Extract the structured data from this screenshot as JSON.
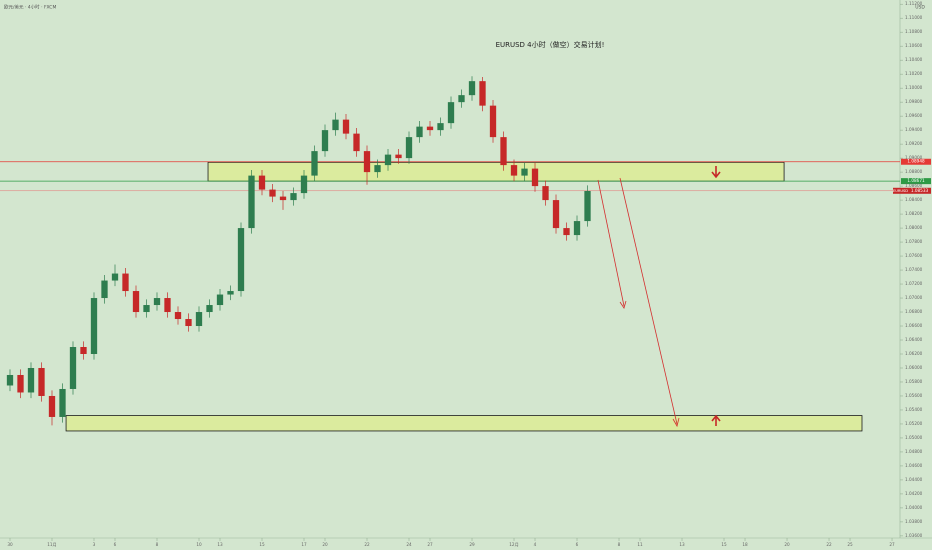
{
  "chart_data": {
    "type": "candlestick",
    "title": "EURUSD  4小时（做空）交易计划!",
    "source": "欧元/美元 · 4小时 · FXCM",
    "currency": "USD",
    "symbol": "EURUSD",
    "price": 1.08533,
    "up_color": "#2e7d4f",
    "down_color": "#c62828",
    "x": [
      0,
      0.5,
      1,
      1.5,
      2,
      2.5,
      3,
      3.5,
      4,
      4.5,
      5,
      5.5,
      6,
      6.5,
      7,
      7.5,
      8,
      8.5,
      9,
      9.5,
      10,
      10.5,
      11,
      11.5,
      12,
      12.5,
      13,
      13.5,
      14,
      14.5,
      15,
      15.5,
      16,
      16.5,
      17,
      17.5,
      18,
      18.5,
      19,
      19.5,
      20,
      20.5,
      21,
      21.5,
      22,
      22.5,
      23,
      23.5,
      24,
      24.5,
      25,
      25.5,
      26,
      26.5,
      27,
      27.5
    ],
    "open": [
      1.0575,
      1.059,
      1.0565,
      1.06,
      1.056,
      1.053,
      1.057,
      1.063,
      1.062,
      1.07,
      1.0725,
      1.0735,
      1.071,
      1.068,
      1.069,
      1.07,
      1.068,
      1.067,
      1.066,
      1.068,
      1.069,
      1.0705,
      1.071,
      1.08,
      1.0875,
      1.0855,
      1.0845,
      1.084,
      1.085,
      1.0875,
      1.091,
      1.094,
      1.0955,
      1.0935,
      1.091,
      1.088,
      1.089,
      1.0905,
      1.09,
      1.093,
      1.0945,
      1.094,
      1.095,
      1.098,
      1.099,
      1.101,
      1.0975,
      1.093,
      1.089,
      1.0875,
      1.0885,
      1.086,
      1.084,
      1.08,
      1.079,
      1.081
    ],
    "high": [
      1.0598,
      1.0598,
      1.0608,
      1.0608,
      1.0568,
      1.0578,
      1.0638,
      1.0638,
      1.0708,
      1.0733,
      1.0748,
      1.0743,
      1.0718,
      1.0698,
      1.0708,
      1.0708,
      1.0688,
      1.0678,
      1.0688,
      1.0698,
      1.0713,
      1.0718,
      1.0808,
      1.0883,
      1.0883,
      1.0863,
      1.0853,
      1.0858,
      1.0883,
      1.0918,
      1.0948,
      1.0965,
      1.0963,
      1.0943,
      1.0918,
      1.0898,
      1.0913,
      1.0913,
      1.0938,
      1.0953,
      1.0953,
      1.0958,
      1.0988,
      1.0998,
      1.1017,
      1.1016,
      1.0983,
      1.0938,
      1.0898,
      1.0893,
      1.0893,
      1.0868,
      1.0848,
      1.0808,
      1.0818,
      1.0861
    ],
    "low": [
      1.0567,
      1.0557,
      1.0557,
      1.0552,
      1.0518,
      1.0522,
      1.0562,
      1.0612,
      1.0612,
      1.0692,
      1.0717,
      1.0702,
      1.0672,
      1.0672,
      1.0682,
      1.0672,
      1.0662,
      1.0652,
      1.0652,
      1.0672,
      1.0682,
      1.0697,
      1.0702,
      1.0792,
      1.0847,
      1.0837,
      1.0826,
      1.0832,
      1.0842,
      1.0867,
      1.0902,
      1.0932,
      1.0927,
      1.0902,
      1.0862,
      1.0872,
      1.0882,
      1.0892,
      1.0892,
      1.0922,
      1.0932,
      1.0932,
      1.0942,
      1.0972,
      1.0982,
      1.0967,
      1.0922,
      1.0882,
      1.0867,
      1.0867,
      1.0852,
      1.0832,
      1.0792,
      1.0782,
      1.0782,
      1.0802
    ],
    "close": [
      1.059,
      1.0565,
      1.06,
      1.056,
      1.053,
      1.057,
      1.063,
      1.062,
      1.07,
      1.0725,
      1.0735,
      1.071,
      1.068,
      1.069,
      1.07,
      1.068,
      1.067,
      1.066,
      1.068,
      1.069,
      1.0705,
      1.071,
      1.08,
      1.0875,
      1.0855,
      1.0845,
      1.084,
      1.085,
      1.0875,
      1.091,
      1.094,
      1.0955,
      1.0935,
      1.091,
      1.088,
      1.089,
      1.0905,
      1.09,
      1.093,
      1.0945,
      1.094,
      1.095,
      1.098,
      1.099,
      1.101,
      1.0975,
      1.093,
      1.089,
      1.0875,
      1.0885,
      1.086,
      1.084,
      1.08,
      1.079,
      1.081,
      1.0853
    ],
    "levels": [
      {
        "value": 1.08948,
        "color": "#e53935"
      },
      {
        "value": 1.08671,
        "color": "#2e9a45"
      }
    ],
    "zones": [
      {
        "y": [
          1.0867,
          1.0894
        ],
        "x": [
          9.43,
          36.86
        ]
      },
      {
        "y": [
          1.051,
          1.0532
        ],
        "x": [
          2.67,
          40.57
        ]
      }
    ],
    "xlim": [
      -0.476,
      42.38
    ],
    "ylim": [
      1.0357,
      1.1126
    ],
    "xticks": [
      {
        "value": 0,
        "label": "30"
      },
      {
        "value": 2,
        "label": "11月"
      },
      {
        "value": 4,
        "label": "3"
      },
      {
        "value": 5,
        "label": "6"
      },
      {
        "value": 7,
        "label": "8"
      },
      {
        "value": 9,
        "label": "10"
      },
      {
        "value": 10,
        "label": "13"
      },
      {
        "value": 12,
        "label": "15"
      },
      {
        "value": 14,
        "label": "17"
      },
      {
        "value": 15,
        "label": "20"
      },
      {
        "value": 17,
        "label": "22"
      },
      {
        "value": 19,
        "label": "24"
      },
      {
        "value": 20,
        "label": "27"
      },
      {
        "value": 22,
        "label": "29"
      },
      {
        "value": 24,
        "label": "12月"
      },
      {
        "value": 25,
        "label": "4"
      },
      {
        "value": 27,
        "label": "6"
      },
      {
        "value": 29,
        "label": "8"
      },
      {
        "value": 30,
        "label": "11"
      },
      {
        "value": 32,
        "label": "13"
      },
      {
        "value": 34,
        "label": "15"
      },
      {
        "value": 35,
        "label": "18"
      },
      {
        "value": 37,
        "label": "20"
      },
      {
        "value": 39,
        "label": "22"
      },
      {
        "value": 40,
        "label": "25"
      },
      {
        "value": 42,
        "label": "27"
      }
    ],
    "yticks": [
      {
        "value": 1.036,
        "label": "1.03600"
      },
      {
        "value": 1.038,
        "label": "1.03800"
      },
      {
        "value": 1.04,
        "label": "1.04000"
      },
      {
        "value": 1.042,
        "label": "1.04200"
      },
      {
        "value": 1.044,
        "label": "1.04400"
      },
      {
        "value": 1.046,
        "label": "1.04600"
      },
      {
        "value": 1.048,
        "label": "1.04800"
      },
      {
        "value": 1.05,
        "label": "1.05000"
      },
      {
        "value": 1.052,
        "label": "1.05200"
      },
      {
        "value": 1.054,
        "label": "1.05400"
      },
      {
        "value": 1.056,
        "label": "1.05600"
      },
      {
        "value": 1.058,
        "label": "1.05800"
      },
      {
        "value": 1.06,
        "label": "1.06000"
      },
      {
        "value": 1.062,
        "label": "1.06200"
      },
      {
        "value": 1.064,
        "label": "1.06400"
      },
      {
        "value": 1.066,
        "label": "1.06600"
      },
      {
        "value": 1.068,
        "label": "1.06800"
      },
      {
        "value": 1.07,
        "label": "1.07000"
      },
      {
        "value": 1.072,
        "label": "1.07200"
      },
      {
        "value": 1.074,
        "label": "1.07400"
      },
      {
        "value": 1.076,
        "label": "1.07600"
      },
      {
        "value": 1.078,
        "label": "1.07800"
      },
      {
        "value": 1.08,
        "label": "1.08000"
      },
      {
        "value": 1.082,
        "label": "1.08200"
      },
      {
        "value": 1.084,
        "label": "1.08400"
      },
      {
        "value": 1.086,
        "label": "1.08600"
      },
      {
        "value": 1.088,
        "label": "1.08800"
      },
      {
        "value": 1.09,
        "label": "1.09000"
      },
      {
        "value": 1.092,
        "label": "1.09200"
      },
      {
        "value": 1.094,
        "label": "1.09400"
      },
      {
        "value": 1.096,
        "label": "1.09600"
      },
      {
        "value": 1.098,
        "label": "1.09800"
      },
      {
        "value": 1.1,
        "label": "1.10000"
      },
      {
        "value": 1.102,
        "label": "1.10200"
      },
      {
        "value": 1.104,
        "label": "1.10400"
      },
      {
        "value": 1.106,
        "label": "1.10600"
      },
      {
        "value": 1.108,
        "label": "1.10800"
      },
      {
        "value": 1.11,
        "label": "1.11000"
      },
      {
        "value": 1.112,
        "label": "1.11200"
      }
    ]
  }
}
